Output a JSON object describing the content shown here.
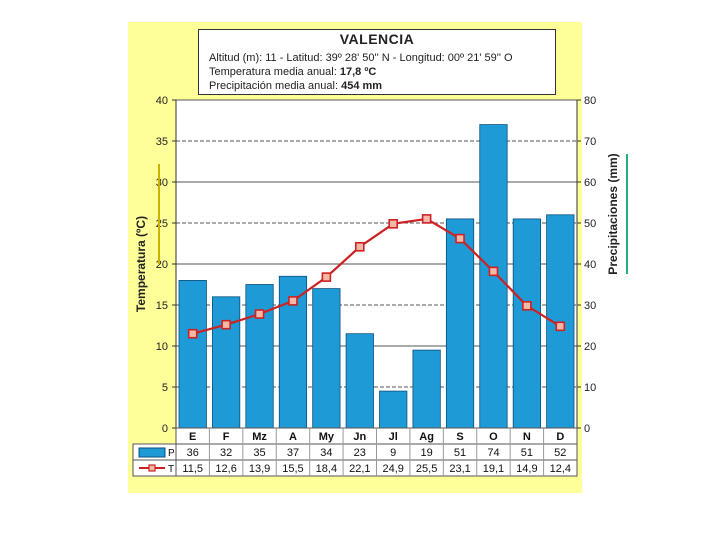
{
  "info": {
    "title": "VALENCIA",
    "location_line": "Altitud (m): 11 - Latitud: 39º 28' 50'' N - Longitud: 00º 21' 59'' O",
    "temp_label": "Temperatura media anual:",
    "temp_value": "17,8 ºC",
    "precip_label": "Precipitación media anual:",
    "precip_value": "454 mm"
  },
  "colors": {
    "panel": "#ffff99",
    "bar": "#1e9bd7",
    "bar_edge": "#0a4f7a",
    "line": "#cc2222",
    "marker_fill": "#f4b8a8",
    "left_axis_accent": "#c8b400",
    "right_axis_accent": "#22b07a"
  },
  "chart_data": {
    "type": "bar+line",
    "categories": [
      "E",
      "F",
      "Mz",
      "A",
      "My",
      "Jn",
      "Jl",
      "Ag",
      "S",
      "O",
      "N",
      "D"
    ],
    "series": [
      {
        "name": "P",
        "type": "bar",
        "axis": "right",
        "values": [
          36,
          32,
          35,
          37,
          34,
          23,
          9,
          19,
          51,
          74,
          51,
          52
        ],
        "labels": [
          "36",
          "32",
          "35",
          "37",
          "34",
          "23",
          "9",
          "19",
          "51",
          "74",
          "51",
          "52"
        ]
      },
      {
        "name": "T",
        "type": "line",
        "axis": "left",
        "values": [
          11.5,
          12.6,
          13.9,
          15.5,
          18.4,
          22.1,
          24.9,
          25.5,
          23.1,
          19.1,
          14.9,
          12.4
        ],
        "labels": [
          "11,5",
          "12,6",
          "13,9",
          "15,5",
          "18,4",
          "22,1",
          "24,9",
          "25,5",
          "23,1",
          "19,1",
          "14,9",
          "12,4"
        ]
      }
    ],
    "ylabel_left": "Temperatura (ºC)",
    "ylabel_right": "Precipitaciones (mm)",
    "ylim_left": [
      0,
      40
    ],
    "ylim_right": [
      0,
      80
    ],
    "yticks_left": [
      0,
      5,
      10,
      15,
      20,
      25,
      30,
      35,
      40
    ],
    "yticks_right": [
      0,
      10,
      20,
      30,
      40,
      50,
      60,
      70,
      80
    ],
    "grid": true,
    "legend": "table-below"
  }
}
